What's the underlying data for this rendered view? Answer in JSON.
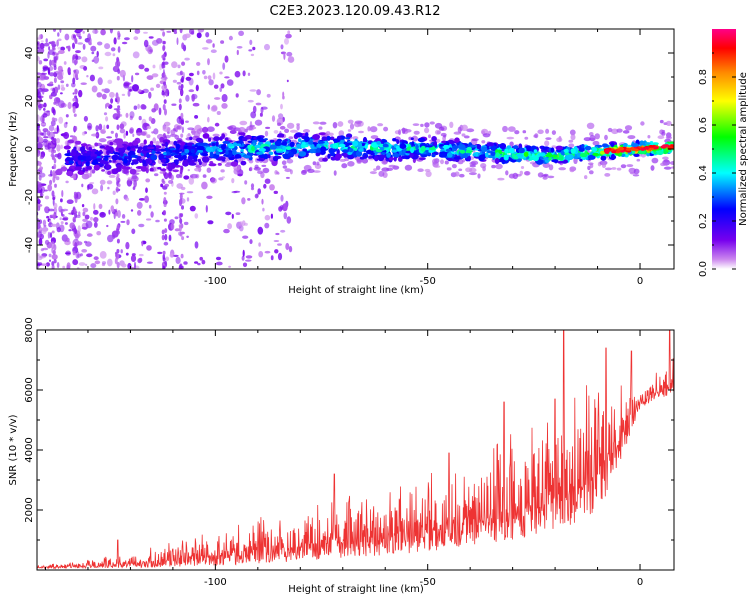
{
  "figure": {
    "title": "C2E3.2023.120.09.43.R12"
  },
  "chart_data": [
    {
      "type": "heatmap",
      "xlabel": "Height of straight line (km)",
      "ylabel": "Frequency (Hz)",
      "xlim": [
        -142,
        8
      ],
      "ylim": [
        -50,
        50
      ],
      "x_ticks": [
        "-100",
        "-50",
        "0"
      ],
      "y_ticks": [
        "-40",
        "-20",
        "0",
        "20",
        "40"
      ],
      "x_tick_values": [
        -100,
        -50,
        0
      ],
      "y_tick_values": [
        -40,
        -20,
        0,
        20,
        40
      ],
      "colorbar": {
        "label": "Normalized spectral amplitude",
        "range": [
          0,
          1
        ],
        "ticks": [
          "0.0",
          "0.2",
          "0.4",
          "0.6",
          "0.8"
        ],
        "tick_values": [
          0,
          0.2,
          0.4,
          0.6,
          0.8
        ],
        "colors": [
          "#ffffff",
          "#cc88ee",
          "#6600ee",
          "#0000ff",
          "#00ffff",
          "#00ff00",
          "#ffff00",
          "#ff8800",
          "#ff0000",
          "#ff0088"
        ]
      },
      "ridge": {
        "description_points_x": [
          -130,
          -120,
          -110,
          -100,
          -90,
          -80,
          -70,
          -60,
          -50,
          -40,
          -30,
          -20,
          -10,
          0,
          8
        ],
        "description_points_y": [
          -4,
          -3,
          -2,
          0,
          0,
          1,
          1,
          0,
          0,
          -1,
          -2,
          -3,
          -1,
          0,
          1
        ],
        "peak_amplitude": [
          0.3,
          0.3,
          0.35,
          0.4,
          0.5,
          0.5,
          0.5,
          0.5,
          0.5,
          0.5,
          0.6,
          0.6,
          0.7,
          0.95,
          0.95
        ]
      }
    },
    {
      "type": "line",
      "xlabel": "Height of straight line (km)",
      "ylabel": "SNR (10 * v/v)",
      "xlim": [
        -142,
        8
      ],
      "ylim": [
        0,
        8000
      ],
      "x_ticks": [
        "-100",
        "-50",
        "0"
      ],
      "y_ticks": [
        "2000",
        "4000",
        "6000",
        "8000"
      ],
      "x_tick_values": [
        -100,
        -50,
        0
      ],
      "y_tick_values": [
        2000,
        4000,
        6000,
        8000
      ],
      "line_color": "#ee3333",
      "envelope_x": [
        -142,
        -130,
        -120,
        -110,
        -100,
        -90,
        -80,
        -70,
        -60,
        -50,
        -40,
        -30,
        -20,
        -10,
        -5,
        0,
        8
      ],
      "envelope_y": [
        150,
        250,
        450,
        700,
        1000,
        1300,
        1600,
        1900,
        2000,
        2500,
        3000,
        3600,
        4400,
        5200,
        5600,
        6000,
        6800
      ],
      "baseline_y": [
        50,
        60,
        80,
        100,
        150,
        200,
        300,
        400,
        500,
        600,
        800,
        1000,
        1300,
        1800,
        3500,
        5400,
        5900
      ],
      "spikes": [
        {
          "x": -123,
          "y": 1000
        },
        {
          "x": -110,
          "y": 700
        },
        {
          "x": -72,
          "y": 3200
        },
        {
          "x": -45,
          "y": 3900
        },
        {
          "x": -32,
          "y": 5600
        },
        {
          "x": -20,
          "y": 5700
        },
        {
          "x": -18,
          "y": 8000
        },
        {
          "x": -8,
          "y": 7400
        },
        {
          "x": -2,
          "y": 7300
        },
        {
          "x": 7,
          "y": 8000
        }
      ]
    }
  ]
}
